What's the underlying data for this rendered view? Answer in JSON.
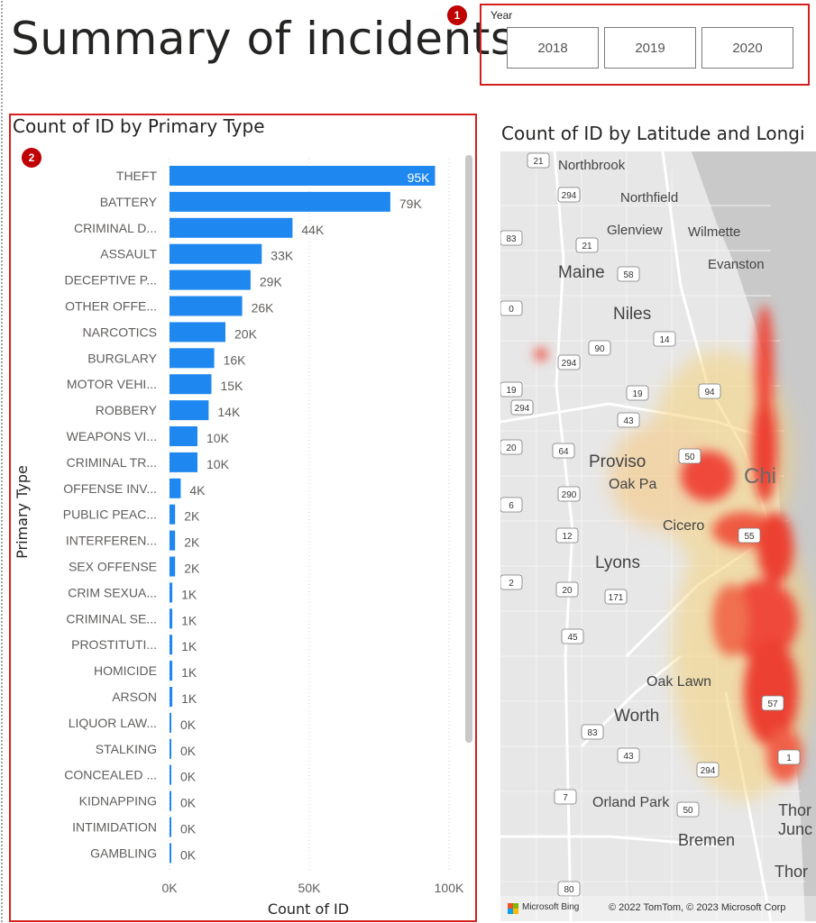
{
  "page": {
    "title": "Summary of incidents"
  },
  "markers": {
    "slicer": "1",
    "bar_chart": "2"
  },
  "slicer": {
    "label": "Year",
    "options": [
      "2018",
      "2019",
      "2020"
    ]
  },
  "colors": {
    "bar": "#1f88f0",
    "highlight_border": "#d51f1f",
    "marker": "#c00000"
  },
  "bar_chart_visual": {
    "title": "Count of ID by Primary Type",
    "icons": [
      "scrollbar"
    ]
  },
  "chart_data": {
    "type": "bar",
    "orientation": "horizontal",
    "title": "Count of ID by Primary Type",
    "xlabel": "Count of ID",
    "ylabel": "Primary Type",
    "xlim": [
      0,
      100000
    ],
    "x_ticks": [
      "0K",
      "50K",
      "100K"
    ],
    "grid": true,
    "categories": [
      "THEFT",
      "BATTERY",
      "CRIMINAL D...",
      "ASSAULT",
      "DECEPTIVE P...",
      "OTHER OFFE...",
      "NARCOTICS",
      "BURGLARY",
      "MOTOR VEHI...",
      "ROBBERY",
      "WEAPONS VI...",
      "CRIMINAL TR...",
      "OFFENSE INV...",
      "PUBLIC PEAC...",
      "INTERFEREN...",
      "SEX OFFENSE",
      "CRIM SEXUA...",
      "CRIMINAL SE...",
      "PROSTITUTI...",
      "HOMICIDE",
      "ARSON",
      "LIQUOR LAW...",
      "STALKING",
      "CONCEALED ...",
      "KIDNAPPING",
      "INTIMIDATION",
      "GAMBLING"
    ],
    "values": [
      95000,
      79000,
      44000,
      33000,
      29000,
      26000,
      20000,
      16000,
      15000,
      14000,
      10000,
      10000,
      4000,
      2000,
      2000,
      2000,
      1000,
      1000,
      1000,
      1000,
      1000,
      400,
      300,
      300,
      200,
      200,
      100
    ],
    "data_labels": [
      "95K",
      "79K",
      "44K",
      "33K",
      "29K",
      "26K",
      "20K",
      "16K",
      "15K",
      "14K",
      "10K",
      "10K",
      "4K",
      "2K",
      "2K",
      "2K",
      "1K",
      "1K",
      "1K",
      "1K",
      "1K",
      "0K",
      "0K",
      "0K",
      "0K",
      "0K",
      "0K"
    ]
  },
  "map_visual": {
    "title": "Count of ID by Latitude and Longi",
    "places": [
      "Northbrook",
      "Northfield",
      "Glenview",
      "Wilmette",
      "Evanston",
      "Maine",
      "Niles",
      "Proviso",
      "Oak Pa",
      "Chi",
      "Cicero",
      "Lyons",
      "Oak Lawn",
      "Worth",
      "Orland Park",
      "Bremen",
      "Thor",
      "Junc",
      "Thor"
    ],
    "road_shields": [
      "21",
      "294",
      "83",
      "21",
      "58",
      "90",
      "14",
      "294",
      "19",
      "294",
      "19",
      "94",
      "43",
      "20",
      "64",
      "290",
      "6",
      "12",
      "55",
      "20",
      "171",
      "45",
      "57",
      "83",
      "43",
      "294",
      "1",
      "7",
      "50",
      "80",
      "0",
      "50",
      "2"
    ],
    "attribution": {
      "bing": "Microsoft Bing",
      "copyright": "© 2022 TomTom, © 2023 Microsoft Corp"
    }
  }
}
